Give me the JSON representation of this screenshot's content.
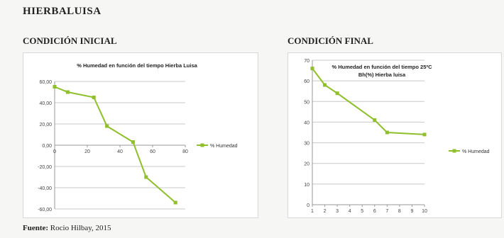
{
  "title": "HIERBALUISA",
  "source_label": "Fuente:",
  "source_text": "Rocio Hilbay, 2015",
  "colors": {
    "line": "#8fbf2a",
    "grid": "#c8c8c8",
    "axis": "#9a9a9a"
  },
  "chart_data": [
    {
      "section_title": "CONDICIÓN INICIAL",
      "type": "line",
      "title": "% Humedad en función del tiempo Hierba Luisa",
      "xlabel": "",
      "ylabel": "",
      "xlim": [
        0,
        60
      ],
      "ylim": [
        -60,
        60
      ],
      "x_ticks": [
        "0",
        "20",
        "40",
        "60",
        "80"
      ],
      "x_tick_values": [
        0,
        20,
        40,
        60,
        80
      ],
      "y_ticks": [
        "60,00",
        "40,00",
        "20,00",
        "0,00",
        "-20,00",
        "-40,00",
        "-60,00"
      ],
      "y_tick_values": [
        60,
        40,
        20,
        0,
        -20,
        -40,
        -60
      ],
      "legend_position": "right",
      "series": [
        {
          "name": "% Humedad",
          "x": [
            0,
            8,
            24,
            32,
            48,
            56,
            74
          ],
          "y": [
            55,
            50,
            45,
            18,
            3,
            -30,
            -54
          ]
        }
      ]
    },
    {
      "section_title": "CONDICIÓN FINAL",
      "type": "line",
      "title": "% Humedad en función del tiempo 25ºC",
      "title2": "Bh(%) Hierba luisa",
      "xlabel": "",
      "ylabel": "",
      "xlim": [
        1,
        10
      ],
      "ylim": [
        0,
        70
      ],
      "x_ticks": [
        "1",
        "2",
        "3",
        "4",
        "5",
        "6",
        "7",
        "8",
        "9",
        "10"
      ],
      "x_tick_values": [
        1,
        2,
        3,
        4,
        5,
        6,
        7,
        8,
        9,
        10
      ],
      "y_ticks": [
        "70",
        "60",
        "50",
        "40",
        "30",
        "20",
        "10",
        "0"
      ],
      "y_tick_values": [
        70,
        60,
        50,
        40,
        30,
        20,
        10,
        0
      ],
      "legend_position": "right",
      "series": [
        {
          "name": "% Humedad",
          "x": [
            1,
            2,
            3,
            6,
            7,
            10
          ],
          "y": [
            66,
            58,
            54,
            41,
            35,
            34
          ]
        }
      ]
    }
  ]
}
